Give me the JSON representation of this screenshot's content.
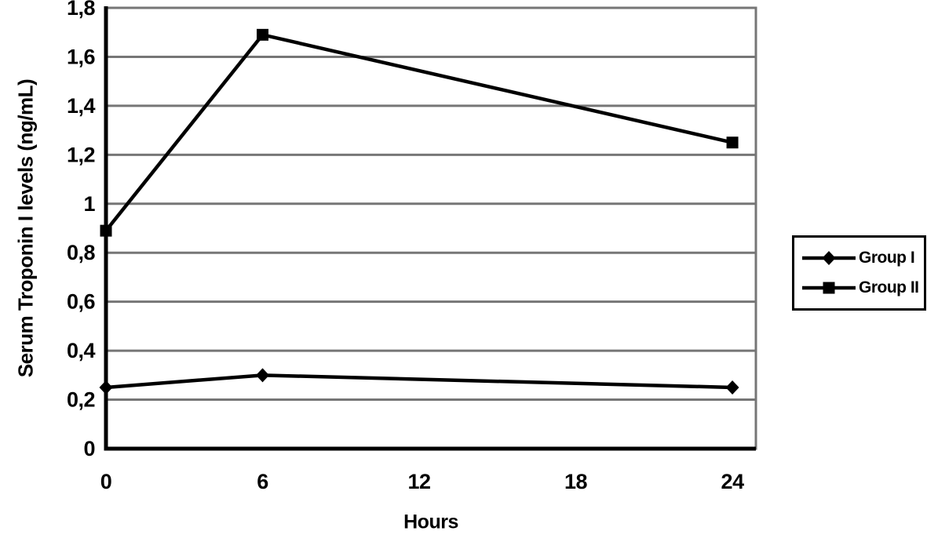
{
  "chart_data": {
    "type": "line",
    "title": "",
    "xlabel": "Hours",
    "ylabel": "Serum Troponin I levels (ng/mL)",
    "x": [
      0,
      6,
      24
    ],
    "series": [
      {
        "name": "Group I",
        "marker": "diamond",
        "color": "#000000",
        "values": [
          0.25,
          0.3,
          0.25
        ]
      },
      {
        "name": "Group II",
        "marker": "square",
        "color": "#000000",
        "values": [
          0.89,
          1.69,
          1.25
        ]
      }
    ],
    "xticks": {
      "values": [
        0,
        6,
        12,
        18,
        24
      ],
      "labels": [
        "0",
        "6",
        "12",
        "18",
        "24"
      ]
    },
    "yticks": {
      "values": [
        0,
        0.2,
        0.4,
        0.6,
        0.8,
        1,
        1.2,
        1.4,
        1.6,
        1.8
      ],
      "labels": [
        "0",
        "0,2",
        "0,4",
        "0,6",
        "0,8",
        "1",
        "1,2",
        "1,4",
        "1,6",
        "1,8"
      ]
    },
    "xlim": [
      0,
      24.9
    ],
    "ylim": [
      0,
      1.8
    ],
    "grid": "horizontal",
    "legend_position": "right",
    "colors": {
      "line": "#000000",
      "gridline": "#767676",
      "plot_border": "#767676",
      "axis": "#000000",
      "background": "#ffffff",
      "legend_border": "#000000",
      "text": "#000000"
    }
  }
}
